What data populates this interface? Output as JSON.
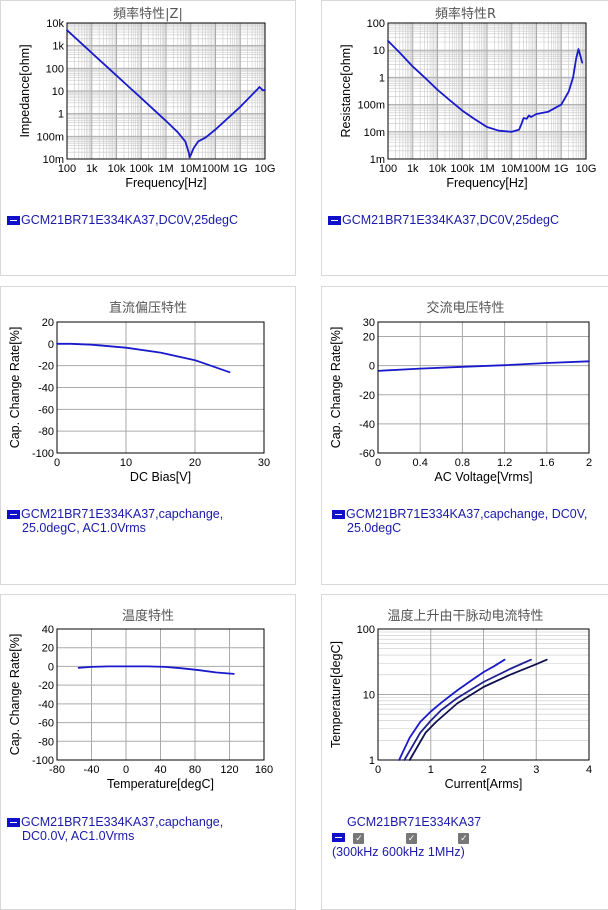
{
  "colors": {
    "series": "#1a1acc",
    "series_dark": "#101060",
    "grid": "#aaaaaa",
    "frame": "#000000"
  },
  "panels": [
    {
      "title": "頻率特性|Z|",
      "legend": [
        "GCM21BR71E334KA37,DC0V,25degC"
      ]
    },
    {
      "title": "頻率特性R",
      "legend": [
        "GCM21BR71E334KA37,DC0V,25degC"
      ]
    },
    {
      "title": "直流偏压特性",
      "legend": [
        "GCM21BR71E334KA37,capchange,",
        "25.0degC, AC1.0Vrms"
      ]
    },
    {
      "title": "交流电压特性",
      "legend": [
        "GCM21BR71E334KA37,capchange, DC0V,",
        "25.0degC"
      ]
    },
    {
      "title": "温度特性",
      "legend": [
        "GCM21BR71E334KA37,capchange,",
        "DC0.0V, AC1.0Vrms"
      ]
    },
    {
      "title": "温度上升由干脉动电流特性",
      "legend": [
        "GCM21BR71E334KA37"
      ],
      "checks": [
        {
          "label": "300kHz"
        },
        {
          "label": "600kHz"
        },
        {
          "label": "1MHz"
        }
      ],
      "paren_open": "(",
      "paren_close": ")"
    }
  ],
  "chart_data": [
    {
      "type": "line",
      "title": "頻率特性|Z|",
      "xlabel": "Frequency[Hz]",
      "ylabel": "Impedance[ohm]",
      "xscale": "log",
      "yscale": "log",
      "xlim": [
        100,
        10000000000.0
      ],
      "ylim": [
        0.01,
        10000
      ],
      "xticks": [
        {
          "v": 100,
          "t": "100"
        },
        {
          "v": 1000,
          "t": "1k"
        },
        {
          "v": 10000,
          "t": "10k"
        },
        {
          "v": 100000,
          "t": "100k"
        },
        {
          "v": 1000000,
          "t": "1M"
        },
        {
          "v": 10000000,
          "t": "10M"
        },
        {
          "v": 100000000,
          "t": "100M"
        },
        {
          "v": 1000000000,
          "t": "1G"
        },
        {
          "v": 10000000000,
          "t": "10G"
        }
      ],
      "yticks": [
        {
          "v": 0.01,
          "t": "10m"
        },
        {
          "v": 0.1,
          "t": "100m"
        },
        {
          "v": 1,
          "t": "1"
        },
        {
          "v": 10,
          "t": "10"
        },
        {
          "v": 100,
          "t": "100"
        },
        {
          "v": 1000,
          "t": "1k"
        },
        {
          "v": 10000,
          "t": "10k"
        }
      ],
      "series": [
        {
          "points": [
            [
              100,
              4800
            ],
            [
              1000,
              480
            ],
            [
              10000,
              48
            ],
            [
              100000,
              4.8
            ],
            [
              1000000,
              0.48
            ],
            [
              3000000,
              0.15
            ],
            [
              6000000,
              0.06
            ],
            [
              8500000,
              0.018
            ],
            [
              9000000,
              0.012
            ],
            [
              10000000,
              0.015
            ],
            [
              13000000,
              0.03
            ],
            [
              20000000,
              0.06
            ],
            [
              40000000,
              0.09
            ],
            [
              100000000,
              0.2
            ],
            [
              1000000000,
              2
            ],
            [
              5000000000,
              12
            ],
            [
              6000000000,
              15
            ],
            [
              8000000000,
              11
            ],
            [
              10000000000,
              11
            ]
          ]
        }
      ],
      "legend": [
        "GCM21BR71E334KA37,DC0V,25degC"
      ]
    },
    {
      "type": "line",
      "title": "頻率特性R",
      "xlabel": "Frequency[Hz]",
      "ylabel": "Resistance[ohm]",
      "xscale": "log",
      "yscale": "log",
      "xlim": [
        100,
        10000000000.0
      ],
      "ylim": [
        0.001,
        100
      ],
      "xticks": [
        {
          "v": 100,
          "t": "100"
        },
        {
          "v": 1000,
          "t": "1k"
        },
        {
          "v": 10000,
          "t": "10k"
        },
        {
          "v": 100000,
          "t": "100k"
        },
        {
          "v": 1000000,
          "t": "1M"
        },
        {
          "v": 10000000,
          "t": "10M"
        },
        {
          "v": 100000000,
          "t": "100M"
        },
        {
          "v": 1000000000,
          "t": "1G"
        },
        {
          "v": 10000000000,
          "t": "10G"
        }
      ],
      "yticks": [
        {
          "v": 0.001,
          "t": "1m"
        },
        {
          "v": 0.01,
          "t": "10m"
        },
        {
          "v": 0.1,
          "t": "100m"
        },
        {
          "v": 1,
          "t": "1"
        },
        {
          "v": 10,
          "t": "10"
        },
        {
          "v": 100,
          "t": "100"
        }
      ],
      "series": [
        {
          "points": [
            [
              100,
              22
            ],
            [
              300,
              8
            ],
            [
              1000,
              2.5
            ],
            [
              3000,
              1
            ],
            [
              10000,
              0.35
            ],
            [
              30000,
              0.15
            ],
            [
              100000,
              0.06
            ],
            [
              300000,
              0.03
            ],
            [
              1000000,
              0.015
            ],
            [
              3000000,
              0.011
            ],
            [
              10000000,
              0.01
            ],
            [
              20000000,
              0.012
            ],
            [
              25000000,
              0.02
            ],
            [
              30000000,
              0.032
            ],
            [
              40000000,
              0.03
            ],
            [
              50000000,
              0.04
            ],
            [
              60000000,
              0.035
            ],
            [
              100000000,
              0.045
            ],
            [
              300000000,
              0.055
            ],
            [
              1000000000,
              0.1
            ],
            [
              2000000000,
              0.3
            ],
            [
              3000000000,
              1
            ],
            [
              4000000000,
              5
            ],
            [
              5000000000,
              11
            ],
            [
              6000000000,
              6
            ],
            [
              7000000000,
              3.5
            ]
          ]
        }
      ],
      "legend": [
        "GCM21BR71E334KA37,DC0V,25degC"
      ]
    },
    {
      "type": "line",
      "title": "直流偏压特性",
      "xlabel": "DC Bias[V]",
      "ylabel": "Cap. Change Rate[%]",
      "xlim": [
        0,
        30
      ],
      "ylim": [
        -100,
        20
      ],
      "xticks": [
        {
          "v": 0,
          "t": "0"
        },
        {
          "v": 10,
          "t": "10"
        },
        {
          "v": 20,
          "t": "20"
        },
        {
          "v": 30,
          "t": "30"
        }
      ],
      "yticks": [
        {
          "v": 20,
          "t": "20"
        },
        {
          "v": 0,
          "t": "0"
        },
        {
          "v": -20,
          "t": "-20"
        },
        {
          "v": -40,
          "t": "-40"
        },
        {
          "v": -60,
          "t": "-60"
        },
        {
          "v": -80,
          "t": "-80"
        },
        {
          "v": -100,
          "t": "-100"
        }
      ],
      "series": [
        {
          "points": [
            [
              0,
              0
            ],
            [
              2,
              0
            ],
            [
              5,
              -0.8
            ],
            [
              10,
              -3.5
            ],
            [
              15,
              -8
            ],
            [
              20,
              -15
            ],
            [
              25,
              -26
            ]
          ]
        }
      ],
      "legend": [
        "GCM21BR71E334KA37,capchange,",
        "25.0degC, AC1.0Vrms"
      ]
    },
    {
      "type": "line",
      "title": "交流电压特性",
      "xlabel": "AC Voltage[Vrms]",
      "ylabel": "Cap. Change Rate[%]",
      "xlim": [
        0,
        2
      ],
      "ylim": [
        -60,
        30
      ],
      "xticks": [
        {
          "v": 0,
          "t": "0"
        },
        {
          "v": 0.4,
          "t": "0.4"
        },
        {
          "v": 0.8,
          "t": "0.8"
        },
        {
          "v": 1.2,
          "t": "1.2"
        },
        {
          "v": 1.6,
          "t": "1.6"
        },
        {
          "v": 2,
          "t": "2"
        }
      ],
      "yticks": [
        {
          "v": 30,
          "t": "30"
        },
        {
          "v": 20,
          "t": "20"
        },
        {
          "v": 0,
          "t": "0"
        },
        {
          "v": -20,
          "t": "-20"
        },
        {
          "v": -40,
          "t": "-40"
        },
        {
          "v": -60,
          "t": "-60"
        }
      ],
      "series": [
        {
          "points": [
            [
              0.01,
              -3.5
            ],
            [
              0.4,
              -2
            ],
            [
              0.8,
              -0.8
            ],
            [
              1.2,
              0.3
            ],
            [
              1.6,
              1.8
            ],
            [
              2,
              3
            ]
          ]
        }
      ],
      "legend": [
        "GCM21BR71E334KA37,capchange, DC0V,",
        "25.0degC"
      ]
    },
    {
      "type": "line",
      "title": "温度特性",
      "xlabel": "Temperature[degC]",
      "ylabel": "Cap. Change Rate[%]",
      "xlim": [
        -80,
        160
      ],
      "ylim": [
        -100,
        40
      ],
      "xticks": [
        {
          "v": -80,
          "t": "-80"
        },
        {
          "v": -40,
          "t": "-40"
        },
        {
          "v": 0,
          "t": "0"
        },
        {
          "v": 40,
          "t": "40"
        },
        {
          "v": 80,
          "t": "80"
        },
        {
          "v": 120,
          "t": "120"
        },
        {
          "v": 160,
          "t": "160"
        }
      ],
      "yticks": [
        {
          "v": 40,
          "t": "40"
        },
        {
          "v": 20,
          "t": "20"
        },
        {
          "v": 0,
          "t": "0"
        },
        {
          "v": -20,
          "t": "-20"
        },
        {
          "v": -40,
          "t": "-40"
        },
        {
          "v": -60,
          "t": "-60"
        },
        {
          "v": -80,
          "t": "-80"
        },
        {
          "v": -100,
          "t": "-100"
        }
      ],
      "series": [
        {
          "points": [
            [
              -55,
              -1.5
            ],
            [
              -40,
              -0.5
            ],
            [
              -20,
              0
            ],
            [
              0,
              0
            ],
            [
              25,
              0
            ],
            [
              45,
              -0.5
            ],
            [
              65,
              -2
            ],
            [
              85,
              -4
            ],
            [
              105,
              -6.5
            ],
            [
              125,
              -8
            ]
          ]
        }
      ],
      "legend": [
        "GCM21BR71E334KA37,capchange,",
        "DC0.0V, AC1.0Vrms"
      ]
    },
    {
      "type": "line",
      "title": "温度上升由干脉动电流特性",
      "xlabel": "Current[Arms]",
      "ylabel": "Temperature[degC]",
      "yscale": "log",
      "xlim": [
        0,
        4
      ],
      "ylim": [
        1,
        100
      ],
      "xticks": [
        {
          "v": 0,
          "t": "0"
        },
        {
          "v": 1,
          "t": "1"
        },
        {
          "v": 2,
          "t": "2"
        },
        {
          "v": 3,
          "t": "3"
        },
        {
          "v": 4,
          "t": "4"
        }
      ],
      "yticks": [
        {
          "v": 1,
          "t": "1"
        },
        {
          "v": 10,
          "t": "10"
        },
        {
          "v": 100,
          "t": "100"
        }
      ],
      "series": [
        {
          "name": "300kHz",
          "color": "#1a1acc",
          "points": [
            [
              0.4,
              1
            ],
            [
              0.6,
              2.2
            ],
            [
              0.8,
              3.8
            ],
            [
              1,
              5.5
            ],
            [
              1.2,
              7.5
            ],
            [
              1.5,
              11.5
            ],
            [
              1.8,
              17
            ],
            [
              2,
              22
            ],
            [
              2.2,
              27
            ],
            [
              2.4,
              34
            ]
          ]
        },
        {
          "name": "600kHz",
          "color": "#202090",
          "points": [
            [
              0.5,
              1
            ],
            [
              0.8,
              2.6
            ],
            [
              1,
              4
            ],
            [
              1.2,
              5.8
            ],
            [
              1.5,
              8.8
            ],
            [
              2,
              15.5
            ],
            [
              2.5,
              24.5
            ],
            [
              2.9,
              34
            ]
          ]
        },
        {
          "name": "1MHz",
          "color": "#101050",
          "points": [
            [
              0.6,
              1
            ],
            [
              0.9,
              2.6
            ],
            [
              1.1,
              3.8
            ],
            [
              1.5,
              7.3
            ],
            [
              2,
              13
            ],
            [
              2.5,
              20
            ],
            [
              3,
              29
            ],
            [
              3.2,
              34
            ]
          ]
        }
      ],
      "legend": [
        "GCM21BR71E334KA37"
      ]
    }
  ]
}
